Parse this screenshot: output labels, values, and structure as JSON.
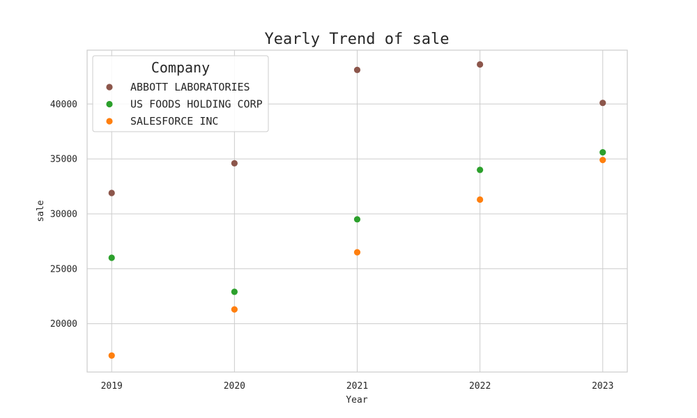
{
  "chart_data": {
    "type": "scatter",
    "title": "Yearly Trend of sale",
    "xlabel": "Year",
    "ylabel": "sale",
    "x": [
      2019,
      2020,
      2021,
      2022,
      2023
    ],
    "xlim": [
      2018.8,
      2023.2
    ],
    "ylim": [
      15600,
      44900
    ],
    "yticks": [
      20000,
      25000,
      30000,
      35000,
      40000
    ],
    "grid": true,
    "legend": {
      "title": "Company",
      "position": "top-left"
    },
    "series": [
      {
        "name": "ABBOTT LABORATORIES",
        "color": "#8c564b",
        "values": [
          31900,
          34600,
          43100,
          43600,
          40100
        ]
      },
      {
        "name": "US FOODS HOLDING CORP",
        "color": "#2ca02c",
        "values": [
          26000,
          22900,
          29500,
          34000,
          35600
        ]
      },
      {
        "name": "SALESFORCE INC",
        "color": "#ff7f0e",
        "values": [
          17100,
          21300,
          26500,
          31300,
          34900
        ]
      }
    ]
  }
}
